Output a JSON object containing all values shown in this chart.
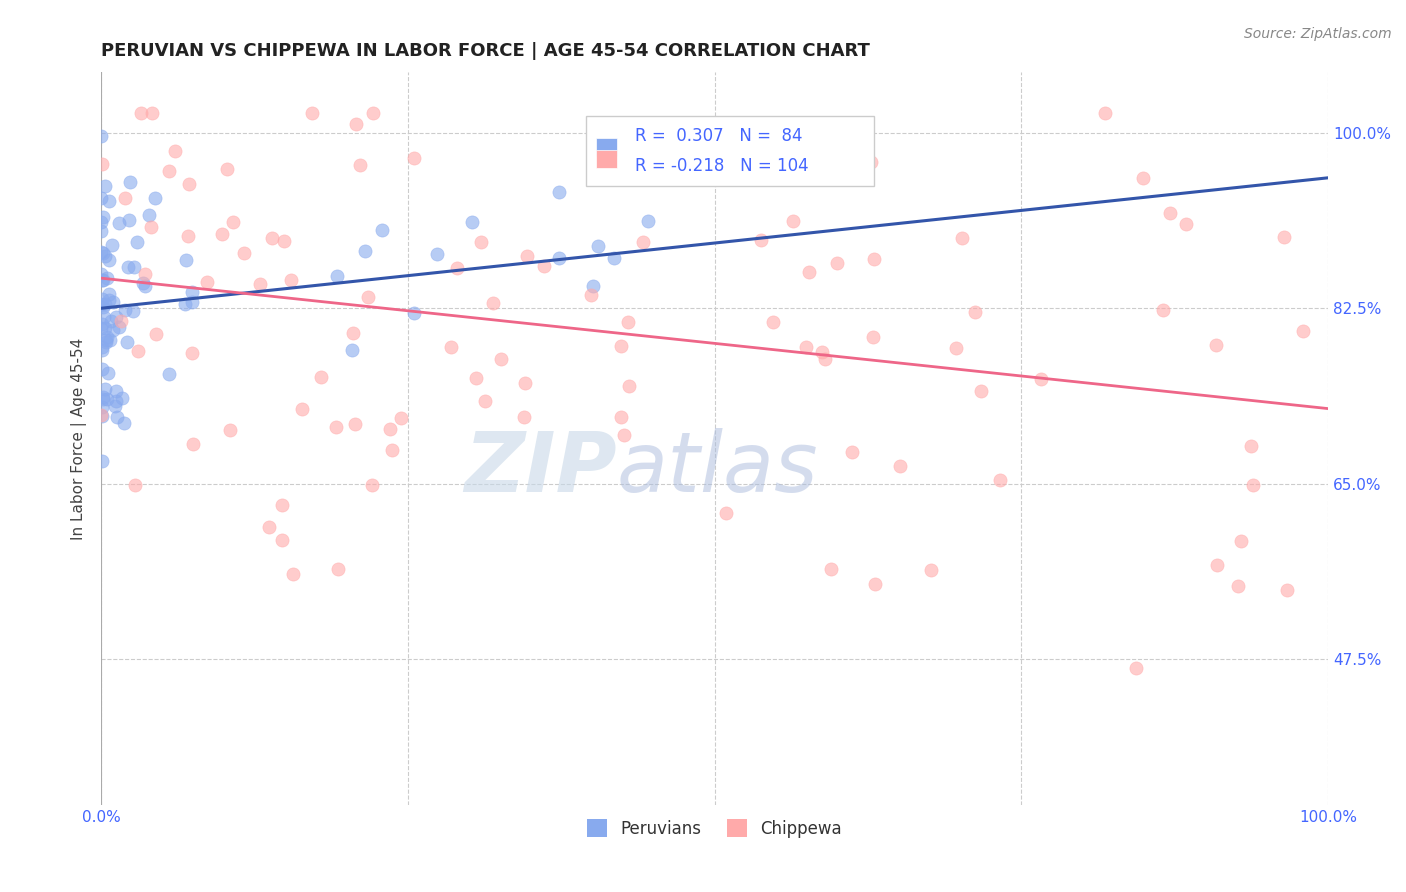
{
  "title": "PERUVIAN VS CHIPPEWA IN LABOR FORCE | AGE 45-54 CORRELATION CHART",
  "source_text": "Source: ZipAtlas.com",
  "ylabel": "In Labor Force | Age 45-54",
  "xlim": [
    0.0,
    1.0
  ],
  "ylim": [
    0.33,
    1.06
  ],
  "yticks": [
    0.475,
    0.65,
    0.825,
    1.0
  ],
  "ytick_labels": [
    "47.5%",
    "65.0%",
    "82.5%",
    "100.0%"
  ],
  "xtick_labels": [
    "0.0%",
    "100.0%"
  ],
  "xtick_positions": [
    0.0,
    1.0
  ],
  "blue_R": 0.307,
  "blue_N": 84,
  "pink_R": -0.218,
  "pink_N": 104,
  "blue_color": "#88aaee",
  "pink_color": "#ffaaaa",
  "blue_line_color": "#3355aa",
  "pink_line_color": "#ee6688",
  "legend_label_blue": "Peruvians",
  "legend_label_pink": "Chippewa",
  "watermark_zip": "ZIP",
  "watermark_atlas": "atlas",
  "background_color": "#ffffff",
  "grid_color": "#cccccc",
  "title_color": "#222222",
  "tick_label_color": "#4466ff",
  "blue_trend_start_x": 0.0,
  "blue_trend_end_x": 1.0,
  "blue_trend_start_y": 0.825,
  "blue_trend_end_y": 0.955,
  "pink_trend_start_x": 0.0,
  "pink_trend_end_x": 1.0,
  "pink_trend_start_y": 0.855,
  "pink_trend_end_y": 0.725
}
